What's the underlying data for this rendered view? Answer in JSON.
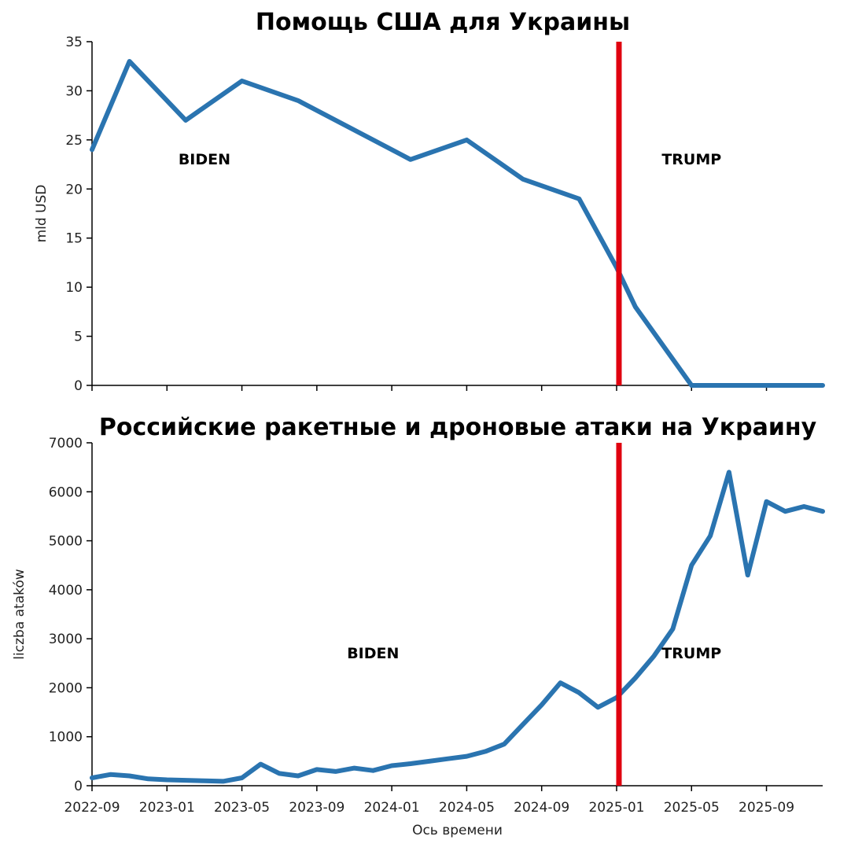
{
  "chart_data": [
    {
      "type": "line",
      "title": "Помощь США для Украины",
      "xlabel": "",
      "ylabel": "mld USD",
      "ylim": [
        0,
        35
      ],
      "yticks": [
        0,
        5,
        10,
        15,
        20,
        25,
        30,
        35
      ],
      "x_axis": "date",
      "xlim": [
        "2022-09",
        "2025-12"
      ],
      "xticks": [
        "2022-09",
        "2023-01",
        "2023-05",
        "2023-09",
        "2024-01",
        "2024-05",
        "2024-09",
        "2025-01",
        "2025-05",
        "2025-09"
      ],
      "show_xtick_labels": false,
      "grid": false,
      "series": [
        {
          "color": "#2a74b0",
          "points": [
            {
              "x": "2022-09",
              "y": 24
            },
            {
              "x": "2022-11",
              "y": 33
            },
            {
              "x": "2023-02",
              "y": 27
            },
            {
              "x": "2023-05",
              "y": 31
            },
            {
              "x": "2023-08",
              "y": 29
            },
            {
              "x": "2024-02",
              "y": 23
            },
            {
              "x": "2024-05",
              "y": 25
            },
            {
              "x": "2024-08",
              "y": 21
            },
            {
              "x": "2024-11",
              "y": 19
            },
            {
              "x": "2025-01",
              "y": 12
            },
            {
              "x": "2025-02",
              "y": 8
            },
            {
              "x": "2025-05",
              "y": 0
            },
            {
              "x": "2025-12",
              "y": 0
            }
          ]
        }
      ],
      "vline": {
        "x": "2025-01",
        "color": "#e0000f"
      },
      "annotations": [
        {
          "text": "BIDEN",
          "x": "2023-03",
          "y": 22.5
        },
        {
          "text": "TRUMP",
          "x": "2025-05",
          "y": 22.5
        }
      ]
    },
    {
      "type": "line",
      "title": "Российские ракетные и дроновые атаки на Украину",
      "xlabel": "Ось времени",
      "ylabel": "liczba ataków",
      "ylim": [
        0,
        7000
      ],
      "yticks": [
        0,
        1000,
        2000,
        3000,
        4000,
        5000,
        6000,
        7000
      ],
      "x_axis": "date",
      "xlim": [
        "2022-09",
        "2025-12"
      ],
      "xticks": [
        "2022-09",
        "2023-01",
        "2023-05",
        "2023-09",
        "2024-01",
        "2024-05",
        "2024-09",
        "2025-01",
        "2025-05",
        "2025-09"
      ],
      "show_xtick_labels": true,
      "grid": false,
      "series": [
        {
          "color": "#2a74b0",
          "points": [
            {
              "x": "2022-09",
              "y": 160
            },
            {
              "x": "2022-10",
              "y": 230
            },
            {
              "x": "2022-11",
              "y": 200
            },
            {
              "x": "2022-12",
              "y": 140
            },
            {
              "x": "2023-01",
              "y": 120
            },
            {
              "x": "2023-02",
              "y": 110
            },
            {
              "x": "2023-03",
              "y": 100
            },
            {
              "x": "2023-04",
              "y": 90
            },
            {
              "x": "2023-05",
              "y": 160
            },
            {
              "x": "2023-06",
              "y": 440
            },
            {
              "x": "2023-07",
              "y": 250
            },
            {
              "x": "2023-08",
              "y": 200
            },
            {
              "x": "2023-09",
              "y": 330
            },
            {
              "x": "2023-10",
              "y": 290
            },
            {
              "x": "2023-11",
              "y": 360
            },
            {
              "x": "2023-12",
              "y": 310
            },
            {
              "x": "2024-01",
              "y": 410
            },
            {
              "x": "2024-02",
              "y": 450
            },
            {
              "x": "2024-03",
              "y": 500
            },
            {
              "x": "2024-04",
              "y": 550
            },
            {
              "x": "2024-05",
              "y": 600
            },
            {
              "x": "2024-06",
              "y": 700
            },
            {
              "x": "2024-07",
              "y": 850
            },
            {
              "x": "2024-08",
              "y": 1250
            },
            {
              "x": "2024-09",
              "y": 1650
            },
            {
              "x": "2024-10",
              "y": 2100
            },
            {
              "x": "2024-11",
              "y": 1900
            },
            {
              "x": "2024-12",
              "y": 1600
            },
            {
              "x": "2025-01",
              "y": 1800
            },
            {
              "x": "2025-02",
              "y": 2200
            },
            {
              "x": "2025-03",
              "y": 2650
            },
            {
              "x": "2025-04",
              "y": 3200
            },
            {
              "x": "2025-05",
              "y": 4500
            },
            {
              "x": "2025-06",
              "y": 5100
            },
            {
              "x": "2025-07",
              "y": 6400
            },
            {
              "x": "2025-08",
              "y": 4300
            },
            {
              "x": "2025-09",
              "y": 5800
            },
            {
              "x": "2025-10",
              "y": 5600
            },
            {
              "x": "2025-11",
              "y": 5700
            },
            {
              "x": "2025-12",
              "y": 5600
            }
          ]
        }
      ],
      "vline": {
        "x": "2025-01",
        "color": "#e0000f"
      },
      "annotations": [
        {
          "text": "BIDEN",
          "x": "2023-12",
          "y": 2600
        },
        {
          "text": "TRUMP",
          "x": "2025-05",
          "y": 2600
        }
      ]
    }
  ]
}
